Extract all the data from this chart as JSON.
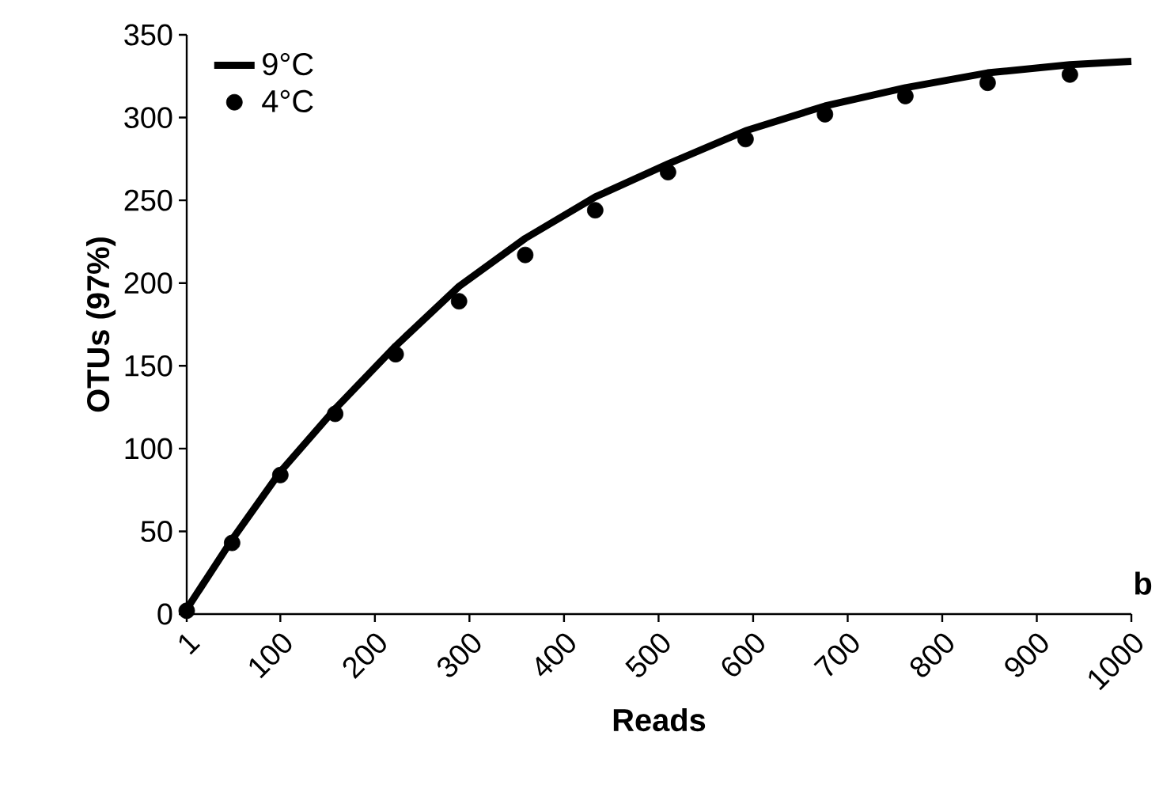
{
  "chart_data": {
    "type": "line",
    "xlabel": "Reads",
    "ylabel": "OTUs (97%)",
    "xlim": [
      1,
      1000
    ],
    "xticks": [
      1,
      100,
      200,
      300,
      400,
      500,
      600,
      700,
      800,
      900,
      1000
    ],
    "ylim": [
      0,
      350
    ],
    "yticks": [
      0,
      50,
      100,
      150,
      200,
      250,
      300,
      350
    ],
    "grid": false,
    "legend": "top left",
    "annotations": [
      "b"
    ],
    "series": [
      {
        "name": "9°C",
        "color": "#000000",
        "marker": "none",
        "line_style": "solid",
        "x": [
          1,
          49,
          100,
          158,
          222,
          289,
          359,
          433,
          510,
          592,
          676,
          761,
          848,
          935,
          1000
        ],
        "values": [
          3,
          45,
          86,
          124,
          162,
          198,
          227,
          252,
          272,
          292,
          307,
          318,
          327,
          332,
          334
        ]
      },
      {
        "name": "4°C",
        "type": "scatter",
        "color": "#000000",
        "marker": "circle",
        "x": [
          1,
          49,
          100,
          158,
          222,
          289,
          359,
          433,
          510,
          592,
          676,
          761,
          848,
          935
        ],
        "values": [
          2,
          43,
          84,
          121,
          157,
          189,
          217,
          244,
          267,
          287,
          302,
          313,
          321,
          326
        ]
      }
    ]
  }
}
